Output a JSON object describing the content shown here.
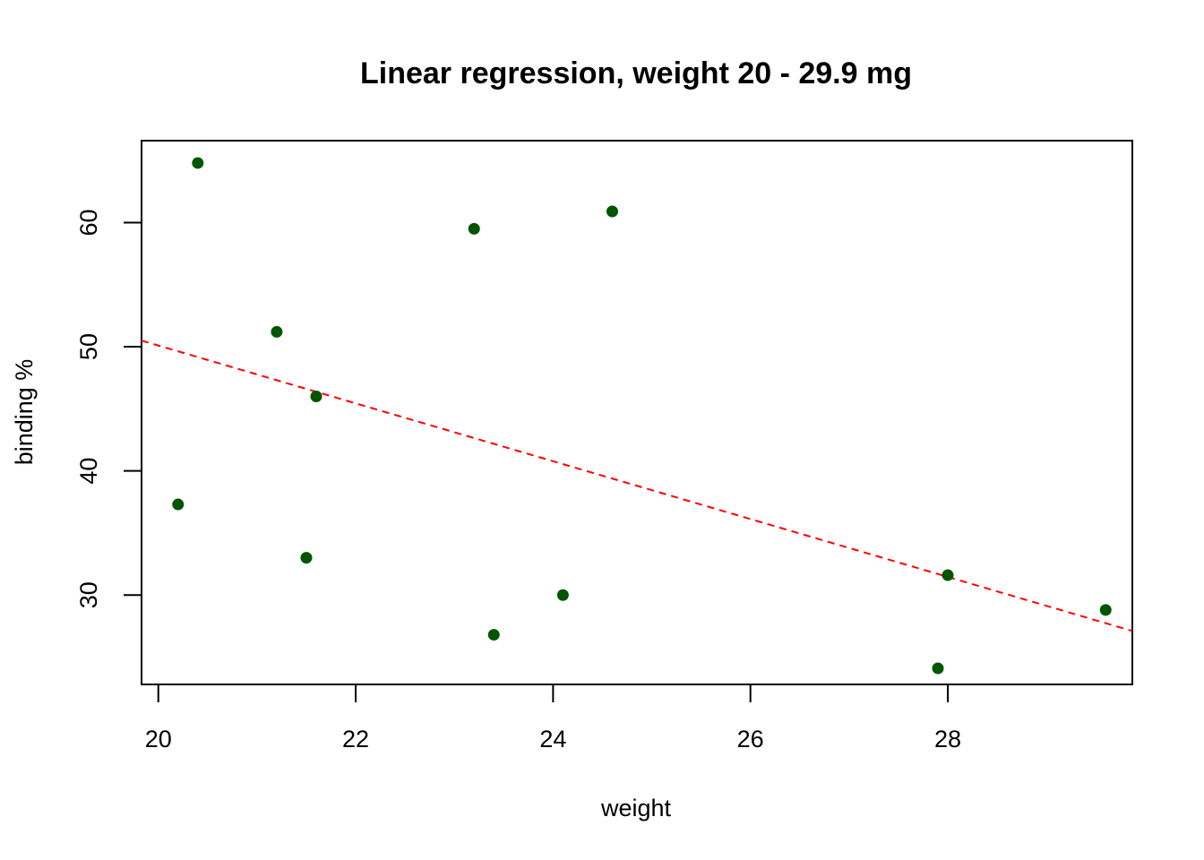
{
  "chart_data": {
    "type": "scatter",
    "title": "Linear regression, weight 20 - 29.9 mg",
    "xlabel": "weight",
    "ylabel": "binding %",
    "xlim": [
      19.83,
      29.87
    ],
    "ylim": [
      22.8,
      66.6
    ],
    "x_ticks": [
      20,
      22,
      24,
      26,
      28
    ],
    "y_ticks": [
      30,
      40,
      50,
      60
    ],
    "grid": false,
    "point_color": "#005500",
    "line_color": "#ff0000",
    "series": [
      {
        "values": [
          {
            "x": 20.2,
            "y": 37.3
          },
          {
            "x": 20.4,
            "y": 64.8
          },
          {
            "x": 21.2,
            "y": 51.2
          },
          {
            "x": 21.5,
            "y": 33.0
          },
          {
            "x": 21.6,
            "y": 46.0
          },
          {
            "x": 23.2,
            "y": 59.5
          },
          {
            "x": 23.4,
            "y": 26.8
          },
          {
            "x": 24.1,
            "y": 30.0
          },
          {
            "x": 24.6,
            "y": 60.9
          },
          {
            "x": 27.9,
            "y": 24.1
          },
          {
            "x": 28.0,
            "y": 31.6
          },
          {
            "x": 29.6,
            "y": 28.8
          }
        ]
      }
    ],
    "regression_line": {
      "style": "dashed",
      "intercept": 96.7,
      "slope": -2.33
    }
  }
}
